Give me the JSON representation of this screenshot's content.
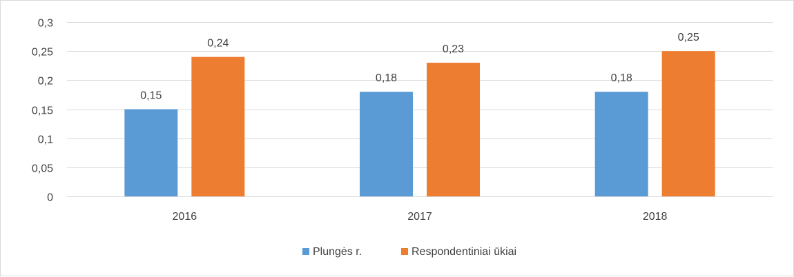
{
  "chart_data": {
    "type": "bar",
    "title": "",
    "xlabel": "",
    "ylabel": "",
    "categories": [
      "2016",
      "2017",
      "2018"
    ],
    "series": [
      {
        "name": "Plungės r.",
        "values": [
          0.15,
          0.18,
          0.18
        ],
        "labels": [
          "0,15",
          "0,18",
          "0,18"
        ],
        "color": "#5b9bd5"
      },
      {
        "name": "Respondentiniai ūkiai",
        "values": [
          0.24,
          0.23,
          0.25
        ],
        "labels": [
          "0,24",
          "0,23",
          "0,25"
        ],
        "color": "#ed7d31"
      }
    ],
    "ylim": [
      0,
      0.3
    ],
    "yticks": [
      0,
      0.05,
      0.1,
      0.15,
      0.2,
      0.25,
      0.3
    ],
    "ytick_labels": [
      "0",
      "0,05",
      "0,1",
      "0,15",
      "0,2",
      "0,25",
      "0,3"
    ],
    "grid": true,
    "grid_color": "#d9d9d9",
    "legend_position": "bottom"
  }
}
